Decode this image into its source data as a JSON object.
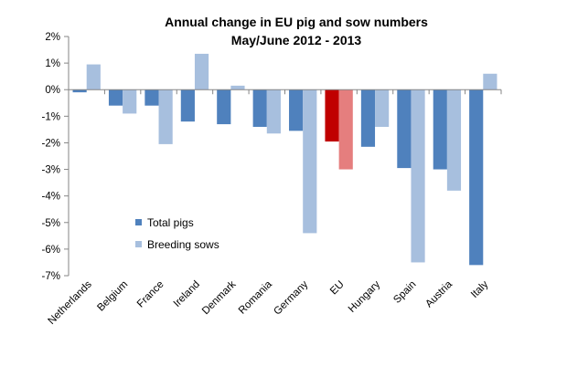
{
  "chart_data": {
    "type": "bar",
    "title": "Annual change in EU pig and sow numbers",
    "subtitle": "May/June 2012 - 2013",
    "xlabel": "",
    "ylabel": "",
    "ylim": [
      -7,
      2
    ],
    "yticks": [
      2,
      1,
      0,
      -1,
      -2,
      -3,
      -4,
      -5,
      -6,
      -7
    ],
    "ytick_labels": [
      "2%",
      "1%",
      "0%",
      "-1%",
      "-2%",
      "-3%",
      "-4%",
      "-5%",
      "-6%",
      "-7%"
    ],
    "categories": [
      "Netherlands",
      "Belgium",
      "France",
      "Ireland",
      "Denmark",
      "Romania",
      "Germany",
      "EU",
      "Hungary",
      "Spain",
      "Austria",
      "Italy"
    ],
    "series": [
      {
        "name": "Total pigs",
        "color": "#4F81BD",
        "highlight": {
          "EU": "#C00000"
        },
        "values": [
          -0.1,
          -0.6,
          -0.6,
          -1.2,
          -1.3,
          -1.4,
          -1.55,
          -1.95,
          -2.15,
          -2.95,
          -3.0,
          -6.6
        ]
      },
      {
        "name": "Breeding sows",
        "color": "#A7BFDE",
        "highlight": {
          "EU": "#E57E7E"
        },
        "values": [
          0.95,
          -0.9,
          -2.05,
          1.35,
          0.15,
          -1.65,
          -5.4,
          -3.0,
          -1.4,
          -6.5,
          -3.8,
          0.6
        ]
      }
    ],
    "grid": false,
    "legend_position": "lower-left"
  }
}
